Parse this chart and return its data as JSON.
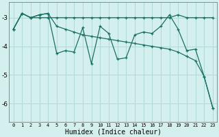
{
  "xlabel": "Humidex (Indice chaleur)",
  "background_color": "#d4f0ee",
  "grid_color": "#b0d8d4",
  "line_color": "#1a6e62",
  "xlim": [
    -0.5,
    23.5
  ],
  "ylim": [
    -6.65,
    -2.45
  ],
  "yticks": [
    -6,
    -5,
    -4,
    -3
  ],
  "xticks": [
    0,
    1,
    2,
    3,
    4,
    5,
    6,
    7,
    8,
    9,
    10,
    11,
    12,
    13,
    14,
    15,
    16,
    17,
    18,
    19,
    20,
    21,
    22,
    23
  ],
  "line1_x": [
    0,
    1,
    2,
    3,
    4,
    5,
    6,
    7,
    8,
    9,
    10,
    11,
    12,
    13,
    14,
    15,
    16,
    17,
    18,
    19,
    20,
    21,
    22,
    23
  ],
  "line1_y": [
    -3.4,
    -2.85,
    -3.0,
    -3.0,
    -3.0,
    -3.0,
    -3.0,
    -3.0,
    -3.0,
    -3.0,
    -3.0,
    -3.0,
    -3.0,
    -3.0,
    -3.0,
    -3.0,
    -3.0,
    -3.0,
    -3.0,
    -2.9,
    -3.0,
    -3.0,
    -3.0,
    -3.0
  ],
  "line2_x": [
    0,
    1,
    2,
    3,
    4,
    5,
    6,
    7,
    8,
    9,
    10,
    11,
    12,
    13,
    14,
    15,
    16,
    17,
    18,
    19,
    20,
    21,
    22,
    23
  ],
  "line2_y": [
    -3.4,
    -2.85,
    -3.0,
    -2.9,
    -2.85,
    -4.25,
    -4.15,
    -4.2,
    -3.35,
    -4.6,
    -3.3,
    -3.55,
    -4.45,
    -4.4,
    -3.6,
    -3.5,
    -3.55,
    -3.3,
    -2.9,
    -3.4,
    -4.15,
    -4.1,
    -5.05,
    -6.15
  ],
  "line3_x": [
    0,
    1,
    2,
    3,
    4,
    5,
    6,
    7,
    8,
    9,
    10,
    11,
    12,
    13,
    14,
    15,
    16,
    17,
    18,
    19,
    20,
    21,
    22,
    23
  ],
  "line3_y": [
    -3.4,
    -2.85,
    -3.0,
    -2.9,
    -2.85,
    -3.3,
    -3.4,
    -3.5,
    -3.6,
    -3.65,
    -3.7,
    -3.75,
    -3.8,
    -3.85,
    -3.9,
    -3.95,
    -4.0,
    -4.05,
    -4.1,
    -4.2,
    -4.35,
    -4.5,
    -5.05,
    -6.15
  ]
}
